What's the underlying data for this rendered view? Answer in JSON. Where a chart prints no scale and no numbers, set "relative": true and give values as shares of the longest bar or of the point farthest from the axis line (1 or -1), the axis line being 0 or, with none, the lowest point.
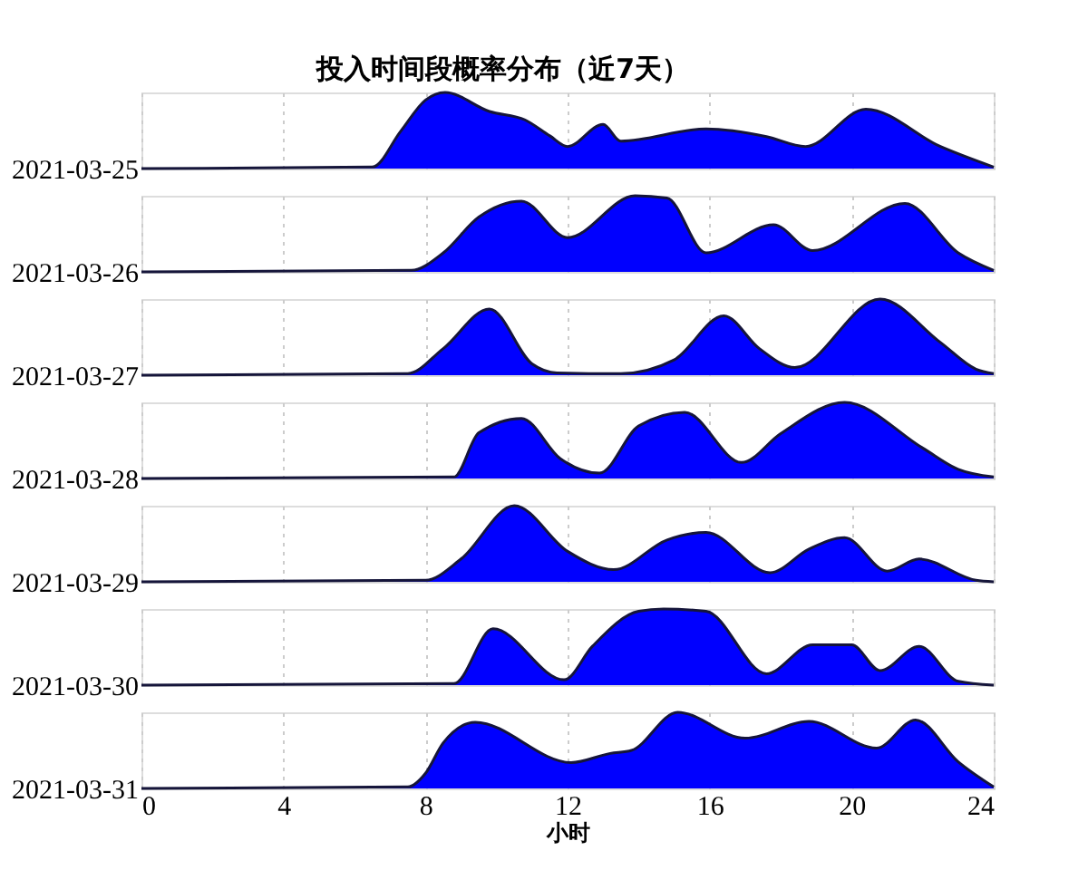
{
  "chart_data": [
    {
      "type": "area",
      "title": "投入时间段概率分布（近7天）",
      "ylabel": "2021-03-25",
      "relative": true,
      "xlim": [
        0,
        24
      ],
      "xticks": [
        0,
        4,
        8,
        12,
        16,
        20,
        24
      ],
      "grid": "x",
      "tick_labels": false,
      "series": [
        {
          "color": "#0000ff",
          "x": [
            0,
            6.5,
            7.3,
            8,
            8.55,
            9.8,
            10.8,
            11.5,
            12.0,
            13.0,
            13.5,
            15.9,
            17.6,
            18.7,
            20.4,
            22.5,
            24
          ],
          "values": [
            0,
            0.02,
            0.49,
            0.9,
            1.0,
            0.75,
            0.64,
            0.43,
            0.29,
            0.58,
            0.36,
            0.52,
            0.42,
            0.29,
            0.78,
            0.29,
            0.02
          ]
        }
      ]
    },
    {
      "type": "area",
      "ylabel": "2021-03-26",
      "relative": true,
      "xlim": [
        0,
        24
      ],
      "xticks": [
        0,
        4,
        8,
        12,
        16,
        20,
        24
      ],
      "grid": "x",
      "tick_labels": false,
      "series": [
        {
          "color": "#0000ff",
          "x": [
            0,
            7.6,
            8.5,
            9.5,
            10.7,
            12.0,
            13.9,
            14.8,
            15.9,
            17.8,
            18.9,
            21.5,
            23,
            24
          ],
          "values": [
            0,
            0.02,
            0.25,
            0.72,
            0.93,
            0.45,
            1.0,
            0.97,
            0.25,
            0.62,
            0.28,
            0.9,
            0.25,
            0.02
          ]
        }
      ]
    },
    {
      "type": "area",
      "ylabel": "2021-03-27",
      "relative": true,
      "xlim": [
        0,
        24
      ],
      "xticks": [
        0,
        4,
        8,
        12,
        16,
        20,
        24
      ],
      "grid": "x",
      "tick_labels": false,
      "series": [
        {
          "color": "#0000ff",
          "x": [
            0,
            7.5,
            8.5,
            9.8,
            11,
            11.7,
            13.5,
            15,
            16.4,
            17.4,
            18.4,
            20.8,
            22.5,
            23.5,
            24
          ],
          "values": [
            0,
            0.02,
            0.35,
            0.87,
            0.15,
            0.03,
            0.02,
            0.2,
            0.78,
            0.35,
            0.1,
            1.0,
            0.43,
            0.08,
            0.02
          ]
        }
      ]
    },
    {
      "type": "area",
      "ylabel": "2021-03-28",
      "relative": true,
      "xlim": [
        0,
        24
      ],
      "xticks": [
        0,
        4,
        8,
        12,
        16,
        20,
        24
      ],
      "grid": "x",
      "tick_labels": false,
      "series": [
        {
          "color": "#0000ff",
          "x": [
            0,
            8.8,
            9.5,
            10.7,
            11.8,
            12.9,
            14,
            15.3,
            16.9,
            18,
            19.8,
            22,
            23,
            24
          ],
          "values": [
            0,
            0.02,
            0.6,
            0.79,
            0.26,
            0.07,
            0.69,
            0.87,
            0.21,
            0.59,
            1.0,
            0.4,
            0.12,
            0.02
          ]
        }
      ]
    },
    {
      "type": "area",
      "ylabel": "2021-03-29",
      "relative": true,
      "xlim": [
        0,
        24
      ],
      "xticks": [
        0,
        4,
        8,
        12,
        16,
        20,
        24
      ],
      "grid": "x",
      "tick_labels": false,
      "series": [
        {
          "color": "#0000ff",
          "x": [
            0,
            8.0,
            9,
            10.5,
            12,
            13.3,
            14.8,
            15.9,
            17.7,
            18.8,
            19.8,
            21.0,
            21.9,
            23.5,
            24
          ],
          "values": [
            0,
            0.02,
            0.3,
            1.0,
            0.4,
            0.16,
            0.55,
            0.65,
            0.12,
            0.43,
            0.58,
            0.14,
            0.3,
            0.02,
            0
          ]
        }
      ]
    },
    {
      "type": "area",
      "ylabel": "2021-03-30",
      "relative": true,
      "xlim": [
        0,
        24
      ],
      "xticks": [
        0,
        4,
        8,
        12,
        16,
        20,
        24
      ],
      "grid": "x",
      "tick_labels": false,
      "series": [
        {
          "color": "#0000ff",
          "x": [
            0,
            8.8,
            9.9,
            11.9,
            12.7,
            14.0,
            14.7,
            15.9,
            17.6,
            18.9,
            20.0,
            20.8,
            21.9,
            23,
            24
          ],
          "values": [
            0,
            0.02,
            0.74,
            0.07,
            0.51,
            0.97,
            1.0,
            0.97,
            0.15,
            0.53,
            0.53,
            0.19,
            0.51,
            0.05,
            0
          ]
        }
      ]
    },
    {
      "type": "area",
      "ylabel": "2021-03-31",
      "xlabel": "小时",
      "relative": true,
      "xlim": [
        0,
        24
      ],
      "xticks": [
        0,
        4,
        8,
        12,
        16,
        20,
        24
      ],
      "grid": "x",
      "series": [
        {
          "color": "#0000ff",
          "x": [
            0,
            7.5,
            8,
            8.5,
            9.4,
            12.1,
            13.2,
            13.8,
            15.1,
            17.0,
            18.8,
            20.7,
            21.8,
            23,
            24
          ],
          "values": [
            0,
            0.02,
            0.2,
            0.6,
            0.87,
            0.34,
            0.46,
            0.5,
            1.0,
            0.66,
            0.88,
            0.53,
            0.9,
            0.35,
            0.02
          ]
        }
      ]
    }
  ]
}
